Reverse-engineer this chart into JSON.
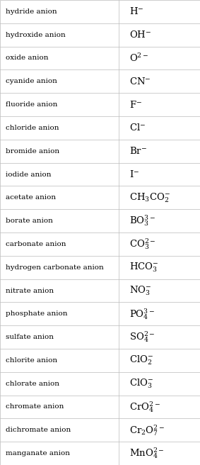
{
  "rows": [
    {
      "name": "hydride anion",
      "mathtext": "$\\mathregular{H^{-}}$"
    },
    {
      "name": "hydroxide anion",
      "mathtext": "$\\mathregular{OH^{-}}$"
    },
    {
      "name": "oxide anion",
      "mathtext": "$\\mathregular{O^{2-}}$"
    },
    {
      "name": "cyanide anion",
      "mathtext": "$\\mathregular{CN^{-}}$"
    },
    {
      "name": "fluoride anion",
      "mathtext": "$\\mathregular{F^{-}}$"
    },
    {
      "name": "chloride anion",
      "mathtext": "$\\mathregular{Cl^{-}}$"
    },
    {
      "name": "bromide anion",
      "mathtext": "$\\mathregular{Br^{-}}$"
    },
    {
      "name": "iodide anion",
      "mathtext": "$\\mathregular{I^{-}}$"
    },
    {
      "name": "acetate anion",
      "mathtext": "$\\mathregular{CH_3CO_2^{-}}$"
    },
    {
      "name": "borate anion",
      "mathtext": "$\\mathregular{BO_3^{3-}}$"
    },
    {
      "name": "carbonate anion",
      "mathtext": "$\\mathregular{CO_3^{2-}}$"
    },
    {
      "name": "hydrogen carbonate anion",
      "mathtext": "$\\mathregular{HCO_3^{-}}$"
    },
    {
      "name": "nitrate anion",
      "mathtext": "$\\mathregular{NO_3^{-}}$"
    },
    {
      "name": "phosphate anion",
      "mathtext": "$\\mathregular{PO_4^{3-}}$"
    },
    {
      "name": "sulfate anion",
      "mathtext": "$\\mathregular{SO_4^{2-}}$"
    },
    {
      "name": "chlorite anion",
      "mathtext": "$\\mathregular{ClO_2^{-}}$"
    },
    {
      "name": "chlorate anion",
      "mathtext": "$\\mathregular{ClO_3^{-}}$"
    },
    {
      "name": "chromate anion",
      "mathtext": "$\\mathregular{CrO_4^{2-}}$"
    },
    {
      "name": "dichromate anion",
      "mathtext": "$\\mathregular{Cr_2O_7^{2-}}$"
    },
    {
      "name": "manganate anion",
      "mathtext": "$\\mathregular{MnO_4^{2-}}$"
    }
  ],
  "col_split": 0.595,
  "bg_color": "#ffffff",
  "line_color": "#bbbbbb",
  "text_color": "#000000",
  "name_fontsize": 7.5,
  "formula_fontsize": 9.5
}
